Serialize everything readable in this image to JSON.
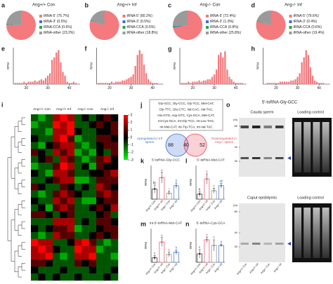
{
  "chart_data": [
    {
      "type": "pie",
      "panel": "a",
      "title": "Ang+/+ Con",
      "categories": [
        "tRNA-5'",
        "tRNA-3'",
        "tRNA-CCA",
        "tRNA-other"
      ],
      "values": [
        75.7,
        0.5,
        0.6,
        23.2
      ],
      "value_labels": [
        "(75.7%)",
        "(0.5%)",
        "(0.6%)",
        "(23.2%)"
      ],
      "colors": [
        "#f47a7d",
        "#3b6fd6",
        "#2ca24a",
        "#9a9a9a"
      ]
    },
    {
      "type": "pie",
      "panel": "b",
      "title": "Ang+/+ Inf",
      "categories": [
        "tRNA-5'",
        "tRNA-3'",
        "tRNA-CCA",
        "tRNA-other"
      ],
      "values": [
        80.2,
        0.5,
        0.5,
        18.8
      ],
      "value_labels": [
        "(80.2%)",
        "(0.5%)",
        "(0.5%)",
        "(18.8%)"
      ],
      "colors": [
        "#f47a7d",
        "#3b6fd6",
        "#2ca24a",
        "#9a9a9a"
      ]
    },
    {
      "type": "pie",
      "panel": "c",
      "title": "Ang-/- Con",
      "categories": [
        "tRNA-5'",
        "tRNA-3'",
        "tRNA-CCA",
        "tRNA-other"
      ],
      "values": [
        72.4,
        1.0,
        0.8,
        25.8
      ],
      "value_labels": [
        "(72.4%)",
        "(1.0%)",
        "(0.8%)",
        "(25.8%)"
      ],
      "colors": [
        "#f47a7d",
        "#3b6fd6",
        "#2ca24a",
        "#9a9a9a"
      ]
    },
    {
      "type": "pie",
      "panel": "d",
      "title": "Ang-/- Inf",
      "categories": [
        "tRNA-5'",
        "tRNA-3'",
        "tRNA-CCA",
        "tRNA-other"
      ],
      "values": [
        79.6,
        0.4,
        0.6,
        19.4
      ],
      "value_labels": [
        "(79.6%)",
        "(0.4%)",
        "(0.6%)",
        "(19.4%)"
      ],
      "colors": [
        "#f47a7d",
        "#3b6fd6",
        "#2ca24a",
        "#9a9a9a"
      ]
    },
    {
      "type": "bar",
      "panel": "e",
      "ylabel": "RPM",
      "color": "#f47a7d",
      "x": [
        15,
        16,
        17,
        18,
        19,
        20,
        21,
        22,
        23,
        24,
        25,
        26,
        27,
        28,
        29,
        30,
        31,
        32,
        33,
        34,
        35,
        36,
        37,
        38,
        39,
        40,
        41,
        42,
        43,
        44
      ],
      "values": [
        1,
        1,
        1,
        1,
        2,
        1,
        2,
        2,
        2,
        3,
        2,
        3,
        4,
        3,
        5,
        7,
        9,
        20,
        22,
        26,
        28,
        18,
        10,
        7,
        2,
        1,
        1,
        2,
        1,
        0
      ],
      "xlim": [
        14,
        45
      ],
      "xticks": [
        20,
        30,
        40
      ],
      "ylim": [
        0,
        30
      ]
    },
    {
      "type": "bar",
      "panel": "f",
      "ylabel": "RPM",
      "color": "#f47a7d",
      "x": [
        15,
        16,
        17,
        18,
        19,
        20,
        21,
        22,
        23,
        24,
        25,
        26,
        27,
        28,
        29,
        30,
        31,
        32,
        33,
        34,
        35,
        36,
        37,
        38,
        39,
        40,
        41,
        42,
        43,
        44
      ],
      "values": [
        1,
        1,
        1,
        1,
        1,
        1,
        2,
        1,
        2,
        2,
        2,
        3,
        3,
        4,
        5,
        6,
        8,
        15,
        24,
        28,
        25,
        16,
        9,
        4,
        2,
        1,
        1,
        1,
        0,
        0
      ],
      "xlim": [
        14,
        45
      ],
      "xticks": [
        20,
        30,
        40
      ],
      "ylim": [
        0,
        30
      ]
    },
    {
      "type": "bar",
      "panel": "g",
      "ylabel": "RPM",
      "color": "#f47a7d",
      "x": [
        15,
        16,
        17,
        18,
        19,
        20,
        21,
        22,
        23,
        24,
        25,
        26,
        27,
        28,
        29,
        30,
        31,
        32,
        33,
        34,
        35,
        36,
        37,
        38,
        39,
        40,
        41,
        42,
        43,
        44
      ],
      "values": [
        1,
        1,
        1,
        2,
        1,
        2,
        2,
        2,
        3,
        2,
        3,
        3,
        4,
        4,
        6,
        8,
        12,
        24,
        26,
        22,
        27,
        12,
        6,
        4,
        2,
        1,
        1,
        1,
        1,
        0
      ],
      "xlim": [
        14,
        45
      ],
      "xticks": [
        20,
        30,
        40
      ],
      "ylim": [
        0,
        30
      ]
    },
    {
      "type": "bar",
      "panel": "h",
      "ylabel": "RPM",
      "color": "#f47a7d",
      "x": [
        15,
        16,
        17,
        18,
        19,
        20,
        21,
        22,
        23,
        24,
        25,
        26,
        27,
        28,
        29,
        30,
        31,
        32,
        33,
        34,
        35,
        36,
        37,
        38,
        39,
        40,
        41,
        42,
        43,
        44
      ],
      "values": [
        0,
        1,
        1,
        1,
        1,
        1,
        1,
        2,
        2,
        2,
        2,
        2,
        3,
        3,
        4,
        6,
        9,
        18,
        22,
        28,
        24,
        14,
        7,
        3,
        2,
        1,
        1,
        1,
        0,
        0
      ],
      "xlim": [
        14,
        45
      ],
      "xticks": [
        20,
        30,
        40
      ],
      "ylim": [
        0,
        30
      ]
    },
    {
      "type": "heatmap",
      "panel": "i",
      "groups": [
        "Ang+/+ Con",
        "Ang+/+ Inf",
        "Ang-/- Con",
        "Ang-/- Inf"
      ],
      "zlim": [
        -3,
        3
      ],
      "colorbar_ticks": [
        3,
        2,
        1,
        0,
        -1,
        -2,
        -3
      ],
      "values": [
        [
          -1,
          -2,
          -1,
          2,
          3,
          2,
          -1,
          0,
          -1,
          0,
          1,
          0
        ],
        [
          -2,
          -1,
          -1,
          3,
          2,
          3,
          -1,
          -1,
          0,
          1,
          0,
          1
        ],
        [
          -1,
          -1,
          -2,
          2,
          2,
          3,
          0,
          -1,
          -1,
          0,
          0,
          1
        ],
        [
          0,
          -1,
          -1,
          2,
          3,
          1,
          -2,
          -1,
          -1,
          1,
          1,
          0
        ],
        [
          -1,
          -2,
          0,
          1,
          2,
          2,
          -1,
          -2,
          -1,
          0,
          1,
          1
        ],
        [
          1,
          0,
          -1,
          2,
          1,
          2,
          -2,
          -1,
          -2,
          0,
          -1,
          1
        ],
        [
          -1,
          0,
          1,
          -1,
          2,
          1,
          -1,
          -2,
          -1,
          1,
          2,
          0
        ],
        [
          -2,
          -1,
          -1,
          1,
          3,
          2,
          -1,
          0,
          -2,
          1,
          0,
          0
        ],
        [
          0,
          -1,
          -2,
          2,
          2,
          1,
          -1,
          -1,
          0,
          0,
          1,
          2
        ],
        [
          -1,
          -1,
          0,
          1,
          2,
          2,
          -2,
          -2,
          -1,
          1,
          1,
          1
        ],
        [
          1,
          0,
          -1,
          -1,
          1,
          0,
          -1,
          0,
          -1,
          2,
          1,
          0
        ],
        [
          -1,
          -2,
          -1,
          1,
          2,
          1,
          0,
          -1,
          -1,
          1,
          2,
          1
        ],
        [
          0,
          -1,
          -1,
          2,
          1,
          2,
          -1,
          -2,
          -2,
          0,
          1,
          1
        ],
        [
          -1,
          0,
          -2,
          1,
          2,
          1,
          -1,
          -1,
          0,
          1,
          0,
          2
        ],
        [
          1,
          1,
          0,
          -1,
          0,
          1,
          -1,
          -1,
          -1,
          0,
          1,
          -1
        ],
        [
          -1,
          -1,
          -1,
          2,
          2,
          2,
          -1,
          0,
          -1,
          1,
          1,
          0
        ],
        [
          0,
          -1,
          0,
          1,
          1,
          2,
          -2,
          -1,
          -1,
          0,
          1,
          1
        ],
        [
          -1,
          -2,
          -1,
          2,
          1,
          1,
          -1,
          -1,
          0,
          1,
          0,
          1
        ],
        [
          3,
          2,
          2,
          -1,
          -1,
          0,
          2,
          3,
          1,
          -1,
          -2,
          -1
        ],
        [
          2,
          3,
          2,
          0,
          -1,
          -1,
          3,
          2,
          2,
          -2,
          -1,
          -1
        ],
        [
          2,
          2,
          3,
          -1,
          -2,
          -1,
          2,
          2,
          3,
          -1,
          -1,
          -2
        ],
        [
          1,
          1,
          0,
          -1,
          -1,
          -1,
          1,
          0,
          1,
          -1,
          -1,
          -1
        ],
        [
          0,
          -1,
          -1,
          -1,
          0,
          -1,
          -1,
          -1,
          0,
          -1,
          -1,
          0
        ],
        [
          -1,
          0,
          -1,
          0,
          -1,
          -1,
          0,
          -1,
          -1,
          -1,
          0,
          -1
        ]
      ]
    },
    {
      "type": "venn",
      "panel": "j",
      "note_lines": [
        "Gly-GCC, Gly-CCC, Gly-TCC, Met-CAT,",
        "Gly-TTC, Glu-CTC, Val-CAC, Val-TAC,",
        "His-GTG, Asp-GTC, Cys-GCA, Met-CAT,",
        "mt-Cys-GCA, mt-Gly-TCC, mt-Leu-TAG,",
        "mt-Met-CAT, mt-Trp-TCA, mt-Val-TAC"
      ],
      "sets": [
        "Upregulated in Inf sperm",
        "Downregulated in Ang-/- sperm"
      ],
      "values": [
        88,
        40,
        52
      ],
      "colors": [
        "#3b6fd6",
        "#e8485a"
      ]
    },
    {
      "type": "bar",
      "panel": "k",
      "title": "5'-tsRNA-Gly-CCC",
      "ylabel": "RPM",
      "categories": [
        "Ang+/+ Con",
        "Ang+/+ Inf",
        "Ang-/- Con",
        "Ang-/- Inf"
      ],
      "values": [
        150,
        320,
        90,
        200
      ],
      "errors": [
        60,
        80,
        30,
        40
      ],
      "annotations": [
        "bc",
        "a",
        "c",
        "b"
      ],
      "colors": [
        "#222222",
        "#e8485a",
        "#888888",
        "#3b6fd6"
      ],
      "ylim": [
        0,
        500
      ]
    },
    {
      "type": "bar",
      "panel": "l",
      "title": "5'-tsRNA-Met-CAT",
      "ylabel": "RPM",
      "categories": [
        "Ang+/+ Con",
        "Ang+/+ Inf",
        "Ang-/- Con",
        "Ang-/- Inf"
      ],
      "values": [
        30,
        120,
        50,
        80
      ],
      "errors": [
        15,
        30,
        15,
        15
      ],
      "annotations": [
        "b",
        "a",
        "b",
        "ab"
      ],
      "colors": [
        "#222222",
        "#e8485a",
        "#888888",
        "#3b6fd6"
      ],
      "ylim": [
        0,
        200
      ]
    },
    {
      "type": "bar",
      "panel": "m",
      "title": "mt-5'-tsRNA-Met-CAT",
      "ylabel": "RPM",
      "categories": [
        "Ang+/+ Con",
        "Ang+/+ Inf",
        "Ang-/- Con",
        "Ang-/- Inf"
      ],
      "values": [
        40,
        180,
        70,
        90
      ],
      "errors": [
        20,
        40,
        20,
        20
      ],
      "annotations": [
        "c",
        "a",
        "b",
        "b"
      ],
      "colors": [
        "#222222",
        "#e8485a",
        "#888888",
        "#3b6fd6"
      ],
      "ylim": [
        0,
        300
      ]
    },
    {
      "type": "bar",
      "panel": "n",
      "title": "5'-tsRNA-Cys-GCA",
      "ylabel": "RPM",
      "categories": [
        "Ang+/+ Con",
        "Ang+/+ Inf",
        "Ang-/- Con",
        "Ang-/- Inf"
      ],
      "values": [
        30,
        80,
        60,
        60
      ],
      "errors": [
        15,
        10,
        20,
        5
      ],
      "annotations": [
        "c",
        "a",
        "b",
        "a"
      ],
      "colors": [
        "#222222",
        "#e8485a",
        "#888888",
        "#3b6fd6"
      ],
      "ylim": [
        0,
        120
      ]
    }
  ],
  "gel": {
    "panel": "o",
    "title": "5'-tsRNA-Gly-GCC",
    "unit": "(nt)",
    "markers": [
      80,
      40,
      30
    ],
    "blots": [
      {
        "title": "Cauda sperm",
        "control": "Loading control"
      },
      {
        "title": "Caput epididymis",
        "control": "Loading control"
      }
    ],
    "lanes": [
      "Ang+/+ Con",
      "Ang+/+ Inf",
      "Ang-/- Con",
      "Ang-/- Inf"
    ]
  }
}
